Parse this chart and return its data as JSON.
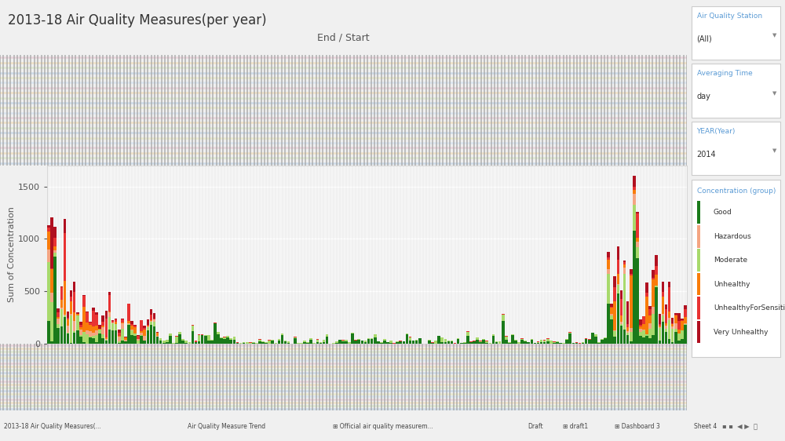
{
  "title": "2013-18 Air Quality Measures(per year)",
  "xlabel": "End / Start",
  "ylabel": "Sum of Concentration",
  "ylim": [
    0,
    1700
  ],
  "yticks": [
    0,
    500,
    1000,
    1500
  ],
  "colors": {
    "Good": "#1a7a1a",
    "Hazardous": "#f4a582",
    "Moderate": "#a8d96c",
    "Unhealthy": "#f97c0a",
    "UnhealthyForSensitive": "#e83232",
    "VeryUnhealthy": "#b01020"
  },
  "legend_labels": [
    "Good",
    "Hazardous",
    "Moderate",
    "Unhealthy",
    "UnhealthyForSensiti...",
    "Very Unhealthy"
  ],
  "sidebar_filter1_label": "Air Quality Station",
  "sidebar_filter1": "(All)",
  "sidebar_filter2_label": "Averaging Time",
  "sidebar_filter2": "day",
  "sidebar_filter3_label": "YEAR(Year)",
  "sidebar_filter3": "2014",
  "sidebar_legend_title": "Concentration (group)",
  "background_color": "#f0f0f0",
  "main_bg": "#ffffff",
  "plot_bg": "#f5f5f5",
  "stripe_colors": [
    "#c8d8e8",
    "#dde8cc",
    "#f0e0c0",
    "#e8d0d8",
    "#d8e4f0",
    "#e8e8c8"
  ],
  "n_bars": 200,
  "seed": 42,
  "status_items": [
    "2013-18 Air Quality Measures(...",
    "Air Quality Measure Trend",
    "⊞ Official air quality measurem...",
    "Draft",
    "⊞ draft1",
    "⊞ Dashboard 3",
    "Sheet 4"
  ]
}
